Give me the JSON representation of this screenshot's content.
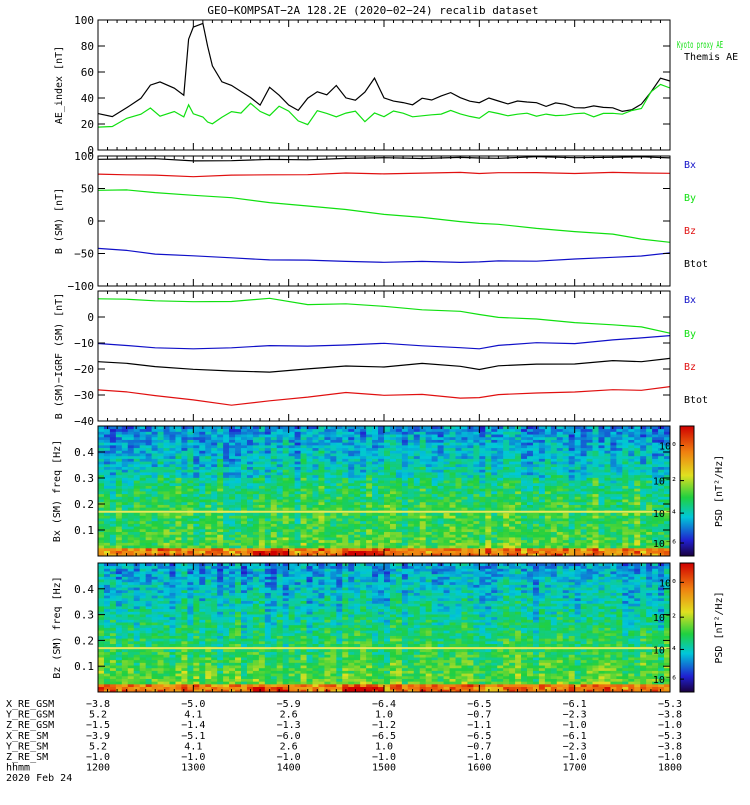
{
  "title": "GEO−KOMPSAT−2A 128.2E (2020−02−24) recalib dataset",
  "colors": {
    "black": "#000000",
    "blue": "#1010c8",
    "green": "#10e010",
    "red": "#e01010"
  },
  "chart_data": [
    {
      "type": "line",
      "name": "ae-panel",
      "ylabel": "AE_index [nT]",
      "ylim": [
        0,
        100
      ],
      "yticks": [
        "0",
        "20",
        "40",
        "60",
        "80",
        "100"
      ],
      "legend": [
        {
          "label": "Kyoto proxy AE",
          "color": "green"
        },
        {
          "label": "Themis AE",
          "color": "black"
        }
      ],
      "x": [
        1200,
        1215,
        1230,
        1245,
        1255,
        1265,
        1280,
        1290,
        1295,
        1300,
        1310,
        1315,
        1320,
        1330,
        1340,
        1350,
        1360,
        1370,
        1380,
        1390,
        1400,
        1410,
        1420,
        1430,
        1440,
        1450,
        1460,
        1470,
        1480,
        1490,
        1500,
        1510,
        1520,
        1530,
        1540,
        1550,
        1560,
        1570,
        1580,
        1590,
        1600,
        1610,
        1620,
        1630,
        1640,
        1650,
        1660,
        1670,
        1680,
        1690,
        1700,
        1710,
        1720,
        1730,
        1740,
        1750,
        1760,
        1770,
        1780,
        1790,
        1800
      ],
      "series": [
        {
          "name": "Themis AE",
          "color": "black",
          "values": [
            28,
            26,
            32,
            40,
            50,
            52,
            48,
            42,
            85,
            95,
            97,
            80,
            65,
            52,
            50,
            45,
            40,
            35,
            48,
            42,
            35,
            30,
            40,
            45,
            42,
            50,
            40,
            38,
            45,
            55,
            40,
            38,
            36,
            35,
            40,
            38,
            42,
            44,
            40,
            38,
            36,
            40,
            38,
            35,
            38,
            37,
            36,
            34,
            36,
            35,
            33,
            32,
            34,
            33,
            32,
            30,
            31,
            35,
            45,
            55,
            53
          ]
        },
        {
          "name": "Kyoto proxy AE",
          "color": "green",
          "values": [
            18,
            18,
            24,
            28,
            32,
            26,
            30,
            25,
            35,
            28,
            25,
            22,
            20,
            25,
            30,
            28,
            36,
            30,
            26,
            34,
            30,
            22,
            20,
            30,
            28,
            26,
            28,
            30,
            22,
            28,
            26,
            30,
            28,
            26,
            26,
            27,
            28,
            30,
            28,
            26,
            24,
            30,
            28,
            26,
            28,
            28,
            26,
            28,
            26,
            27,
            28,
            28,
            26,
            28,
            28,
            28,
            30,
            32,
            45,
            50,
            48
          ]
        }
      ]
    },
    {
      "type": "line",
      "name": "b-sm-panel",
      "ylabel": "B (SM) [nT]",
      "ylim": [
        -100,
        100
      ],
      "yticks": [
        "−100",
        "−50",
        "0",
        "50",
        "100"
      ],
      "legend": [
        {
          "label": "Bx",
          "color": "blue"
        },
        {
          "label": "By",
          "color": "green"
        },
        {
          "label": "Bz",
          "color": "red"
        },
        {
          "label": "Btot",
          "color": "black"
        }
      ],
      "x": [
        1200,
        1230,
        1260,
        1300,
        1340,
        1380,
        1420,
        1460,
        1500,
        1540,
        1580,
        1600,
        1620,
        1660,
        1700,
        1740,
        1770,
        1800
      ],
      "series": [
        {
          "name": "Btot",
          "color": "black",
          "values": [
            95,
            96,
            95,
            93,
            93,
            94,
            95,
            96,
            97,
            97,
            97,
            97,
            97,
            98,
            98,
            98,
            98,
            98
          ]
        },
        {
          "name": "Bz",
          "color": "red",
          "values": [
            73,
            71,
            70,
            69,
            70,
            71,
            72,
            73,
            73,
            74,
            74,
            74,
            74,
            74,
            74,
            74,
            74,
            74
          ]
        },
        {
          "name": "By",
          "color": "green",
          "values": [
            48,
            47,
            44,
            40,
            35,
            29,
            23,
            17,
            11,
            5,
            -1,
            -3,
            -6,
            -11,
            -16,
            -21,
            -27,
            -33
          ]
        },
        {
          "name": "Bx",
          "color": "blue",
          "values": [
            -42,
            -46,
            -50,
            -54,
            -57,
            -59,
            -61,
            -62,
            -63,
            -63,
            -63,
            -63,
            -62,
            -61,
            -59,
            -56,
            -53,
            -50
          ]
        }
      ]
    },
    {
      "type": "line",
      "name": "b-igrf-panel",
      "ylabel": "B (SM)−IGRF (SM) [nT]",
      "ylim": [
        -40,
        10
      ],
      "yticks": [
        "−40",
        "−30",
        "−20",
        "−10",
        "0"
      ],
      "legend": [
        {
          "label": "Bx",
          "color": "blue"
        },
        {
          "label": "By",
          "color": "green"
        },
        {
          "label": "Bz",
          "color": "red"
        },
        {
          "label": "Btot",
          "color": "black"
        }
      ],
      "x": [
        1200,
        1230,
        1260,
        1300,
        1340,
        1380,
        1420,
        1460,
        1500,
        1540,
        1580,
        1600,
        1620,
        1660,
        1700,
        1740,
        1770,
        1800
      ],
      "series": [
        {
          "name": "By",
          "color": "green",
          "values": [
            7,
            7,
            6,
            6,
            6,
            7,
            5,
            5,
            4,
            3,
            2,
            1,
            0,
            -1,
            -2,
            -3,
            -4,
            -6
          ]
        },
        {
          "name": "Bx",
          "color": "blue",
          "values": [
            -10,
            -11,
            -12,
            -12,
            -12,
            -11,
            -11,
            -11,
            -10,
            -11,
            -12,
            -12,
            -11,
            -10,
            -10,
            -9,
            -8,
            -7
          ]
        },
        {
          "name": "Btot",
          "color": "black",
          "values": [
            -17,
            -18,
            -19,
            -20,
            -21,
            -21,
            -20,
            -19,
            -19,
            -18,
            -19,
            -20,
            -19,
            -18,
            -18,
            -17,
            -17,
            -16
          ]
        },
        {
          "name": "Bz",
          "color": "red",
          "values": [
            -28,
            -29,
            -30,
            -32,
            -34,
            -32,
            -31,
            -29,
            -30,
            -30,
            -31,
            -31,
            -30,
            -29,
            -29,
            -28,
            -28,
            -27
          ]
        }
      ]
    },
    {
      "type": "heatmap",
      "name": "bx-spectrogram",
      "ylabel": "Bx (SM) freq [Hz]",
      "yticks": [
        "0.1",
        "0.2",
        "0.3",
        "0.4"
      ],
      "colorbar_label": "PSD [nT²/Hz]",
      "colorbar_ticks": [
        "10⁰",
        "10⁻²",
        "10⁻⁴",
        "10⁻⁶"
      ]
    },
    {
      "type": "heatmap",
      "name": "bz-spectrogram",
      "ylabel": "Bz (SM) freq [Hz]",
      "yticks": [
        "0.1",
        "0.2",
        "0.3",
        "0.4"
      ],
      "colorbar_label": "PSD [nT²/Hz]",
      "colorbar_ticks": [
        "10⁰",
        "10⁻²",
        "10⁻⁴",
        "10⁻⁶"
      ]
    }
  ],
  "ephemeris": {
    "rows": [
      {
        "label": "X_RE_GSM",
        "values": [
          "−3.8",
          "−5.0",
          "−5.9",
          "−6.4",
          "−6.5",
          "−6.1",
          "−5.3"
        ]
      },
      {
        "label": "Y_RE_GSM",
        "values": [
          "5.2",
          "4.1",
          "2.6",
          "1.0",
          "−0.7",
          "−2.3",
          "−3.8"
        ]
      },
      {
        "label": "Z_RE_GSM",
        "values": [
          "−1.5",
          "−1.4",
          "−1.3",
          "−1.2",
          "−1.1",
          "−1.0",
          "−1.0"
        ]
      },
      {
        "label": "X_RE_SM",
        "values": [
          "−3.9",
          "−5.1",
          "−6.0",
          "−6.5",
          "−6.5",
          "−6.1",
          "−5.3"
        ]
      },
      {
        "label": "Y_RE_SM",
        "values": [
          "5.2",
          "4.1",
          "2.6",
          "1.0",
          "−0.7",
          "−2.3",
          "−3.8"
        ]
      },
      {
        "label": "Z_RE_SM",
        "values": [
          "−1.0",
          "−1.0",
          "−1.0",
          "−1.0",
          "−1.0",
          "−1.0",
          "−1.0"
        ]
      },
      {
        "label": "hhmm",
        "values": [
          "1200",
          "1300",
          "1400",
          "1500",
          "1600",
          "1700",
          "1800"
        ]
      }
    ],
    "date": "2020 Feb 24"
  }
}
